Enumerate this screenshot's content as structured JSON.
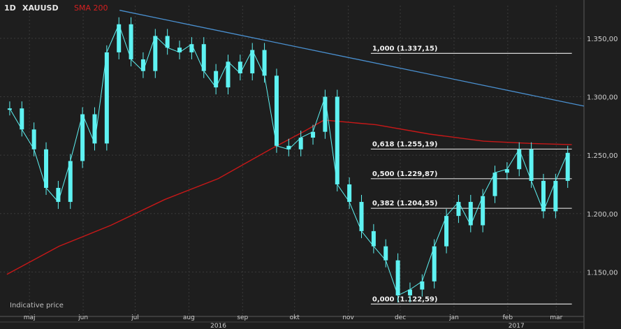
{
  "header": {
    "period": "1D",
    "symbol": "XAUUSD",
    "indicator": "SMA 200"
  },
  "footnote": "Indicative price",
  "colors": {
    "background": "#1e1e1e",
    "candle": "#5ef2f2",
    "sma": "#c81818",
    "trendline": "#4a90d0",
    "fib": "#d8d8d8",
    "grid": "#3a3a3a",
    "text": "#d0d0d0"
  },
  "chart_data": {
    "type": "line",
    "series": [
      {
        "name": "XAUUSD",
        "x": [
          "2016-05-02",
          "2016-05-09",
          "2016-05-16",
          "2016-05-23",
          "2016-05-30",
          "2016-06-06",
          "2016-06-13",
          "2016-06-20",
          "2016-06-27",
          "2016-07-04",
          "2016-07-11",
          "2016-07-18",
          "2016-07-25",
          "2016-08-01",
          "2016-08-08",
          "2016-08-15",
          "2016-08-22",
          "2016-08-29",
          "2016-09-05",
          "2016-09-12",
          "2016-09-19",
          "2016-09-26",
          "2016-10-03",
          "2016-10-10",
          "2016-10-17",
          "2016-10-24",
          "2016-10-31",
          "2016-11-07",
          "2016-11-14",
          "2016-11-21",
          "2016-11-28",
          "2016-12-05",
          "2016-12-12",
          "2016-12-19",
          "2016-12-26",
          "2017-01-02",
          "2017-01-09",
          "2017-01-16",
          "2017-01-23",
          "2017-01-30",
          "2017-02-06",
          "2017-02-13",
          "2017-02-20",
          "2017-02-27",
          "2017-03-06",
          "2017-03-13",
          "2017-03-20"
        ],
        "values": [
          1290,
          1272,
          1255,
          1222,
          1210,
          1245,
          1285,
          1260,
          1338,
          1362,
          1332,
          1322,
          1352,
          1342,
          1338,
          1345,
          1322,
          1308,
          1330,
          1320,
          1340,
          1318,
          1258,
          1255,
          1265,
          1270,
          1300,
          1225,
          1210,
          1185,
          1172,
          1160,
          1130,
          1135,
          1142,
          1172,
          1198,
          1210,
          1190,
          1215,
          1235,
          1238,
          1255,
          1228,
          1202,
          1228,
          1252
        ]
      },
      {
        "name": "SMA 200",
        "x": [
          "2016-05-02",
          "2016-06-01",
          "2016-07-01",
          "2016-08-01",
          "2016-09-01",
          "2016-10-01",
          "2016-10-20",
          "2016-11-01",
          "2016-12-01",
          "2017-01-01",
          "2017-02-01",
          "2017-03-01",
          "2017-03-24"
        ],
        "values": [
          1148,
          1172,
          1190,
          1212,
          1230,
          1255,
          1270,
          1280,
          1276,
          1268,
          1262,
          1260,
          1259
        ]
      }
    ],
    "trendline": {
      "x": [
        "2016-07-06",
        "2017-03-31"
      ],
      "values": [
        1374,
        1292
      ]
    },
    "fib_levels": [
      {
        "label": "1,000 (1.337,15)",
        "value": 1337.15
      },
      {
        "label": "0,618 (1.255,19)",
        "value": 1255.19
      },
      {
        "label": "0,500 (1.229,87)",
        "value": 1229.87
      },
      {
        "label": "0,382 (1.204,55)",
        "value": 1204.55
      },
      {
        "label": "0,000 (1.122,59)",
        "value": 1122.59
      }
    ],
    "y_ticks": [
      "1.350,00",
      "1.300,00",
      "1.250,00",
      "1.200,00",
      "1.150,00"
    ],
    "y_tick_values": [
      1350,
      1300,
      1250,
      1200,
      1150
    ],
    "ylim": [
      1112,
      1378
    ],
    "xlim": [
      "2016-04-28",
      "2017-03-31"
    ],
    "month_ticks": [
      {
        "label": "maj",
        "date": "2016-05-15"
      },
      {
        "label": "jun",
        "date": "2016-06-15"
      },
      {
        "label": "jul",
        "date": "2016-07-15"
      },
      {
        "label": "aug",
        "date": "2016-08-15"
      },
      {
        "label": "sep",
        "date": "2016-09-15"
      },
      {
        "label": "okt",
        "date": "2016-10-15"
      },
      {
        "label": "nov",
        "date": "2016-11-15"
      },
      {
        "label": "dec",
        "date": "2016-12-15"
      },
      {
        "label": "jan",
        "date": "2017-01-15"
      },
      {
        "label": "feb",
        "date": "2017-02-15"
      },
      {
        "label": "mar",
        "date": "2017-03-15"
      }
    ],
    "year_ticks": [
      {
        "label": "2016",
        "date": "2016-09-01"
      },
      {
        "label": "2017",
        "date": "2017-02-20"
      }
    ],
    "grid": true
  }
}
